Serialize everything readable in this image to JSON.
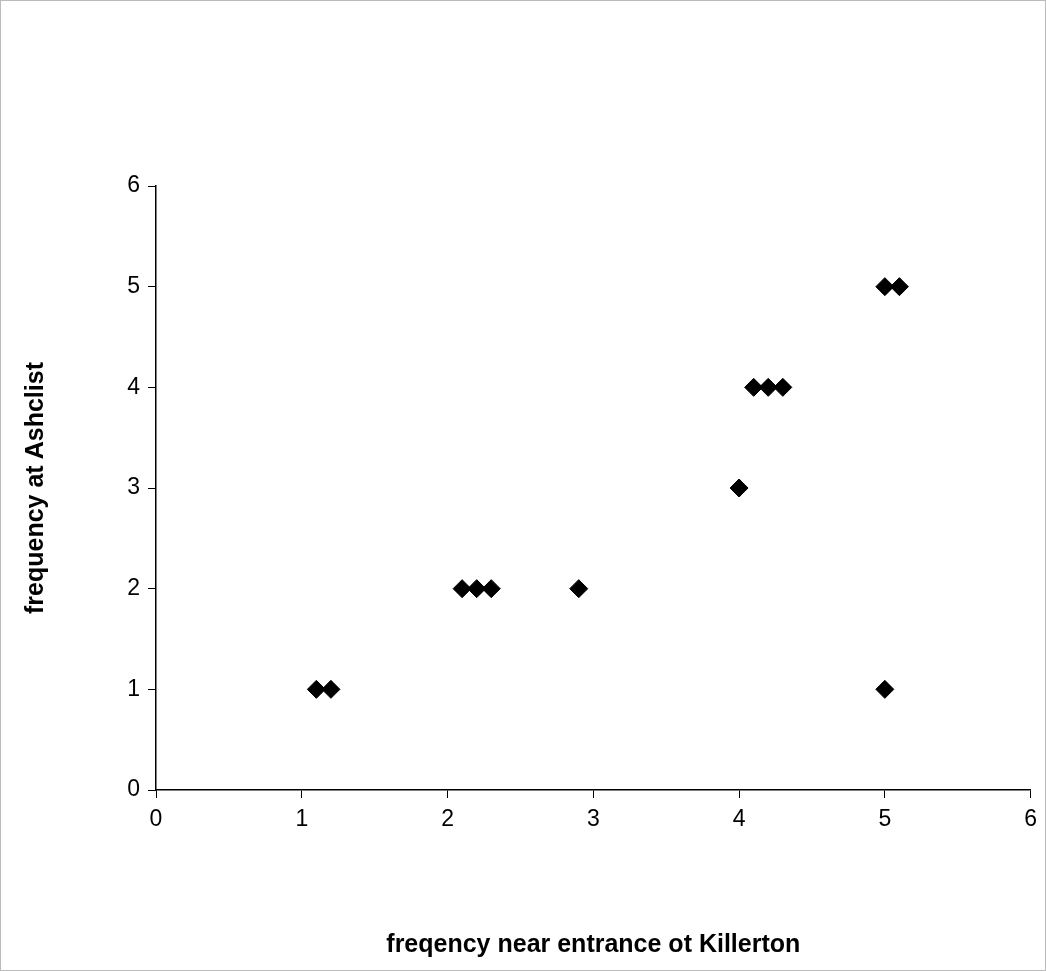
{
  "chart_data": {
    "type": "scatter",
    "xlabel": "freqency near entrance ot Killerton",
    "ylabel": "frequency at Ashclist",
    "x": [
      1.1,
      1.2,
      2.1,
      2.2,
      2.3,
      2.9,
      4,
      4.1,
      4.2,
      4.3,
      5,
      5.1,
      5
    ],
    "series": [
      {
        "color": "#000000",
        "values": [
          1,
          1,
          2,
          2,
          2,
          2,
          3,
          4,
          4,
          4,
          5,
          5,
          1
        ]
      }
    ],
    "xlim": [
      0,
      6
    ],
    "xticks": [
      0,
      1,
      2,
      3,
      4,
      5,
      6
    ],
    "ylim": [
      0,
      6
    ],
    "yticks": [
      0,
      1,
      2,
      3,
      4,
      5,
      6
    ],
    "marker": "diamond",
    "grid": false,
    "legend": false
  }
}
